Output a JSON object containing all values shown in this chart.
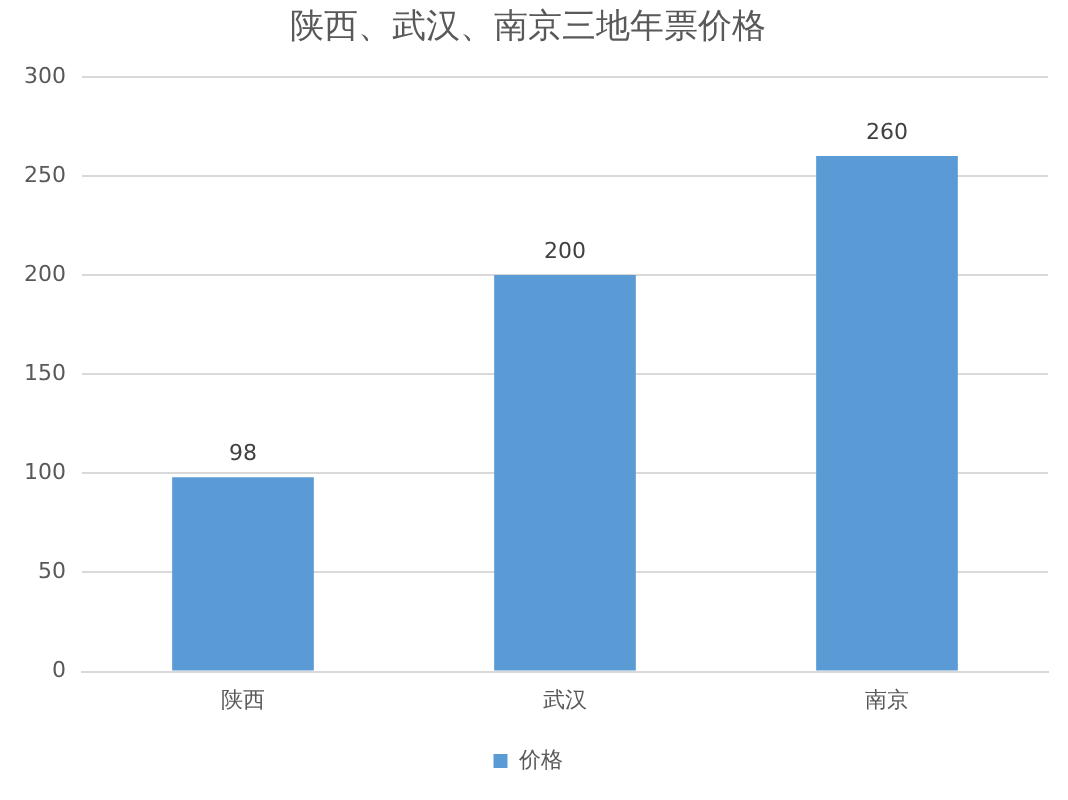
{
  "chart_data": {
    "type": "bar",
    "title": "陕西、武汉、南京三地年票价格",
    "categories": [
      "陕西",
      "武汉",
      "南京"
    ],
    "series": [
      {
        "name": "价格",
        "color": "#5b9bd5",
        "values": [
          98,
          200,
          260
        ]
      }
    ],
    "ylim": [
      0,
      300
    ],
    "yticks": [
      0,
      50,
      100,
      150,
      200,
      250,
      300
    ],
    "grid": "y",
    "legend": "bottom",
    "data_labels": true
  }
}
